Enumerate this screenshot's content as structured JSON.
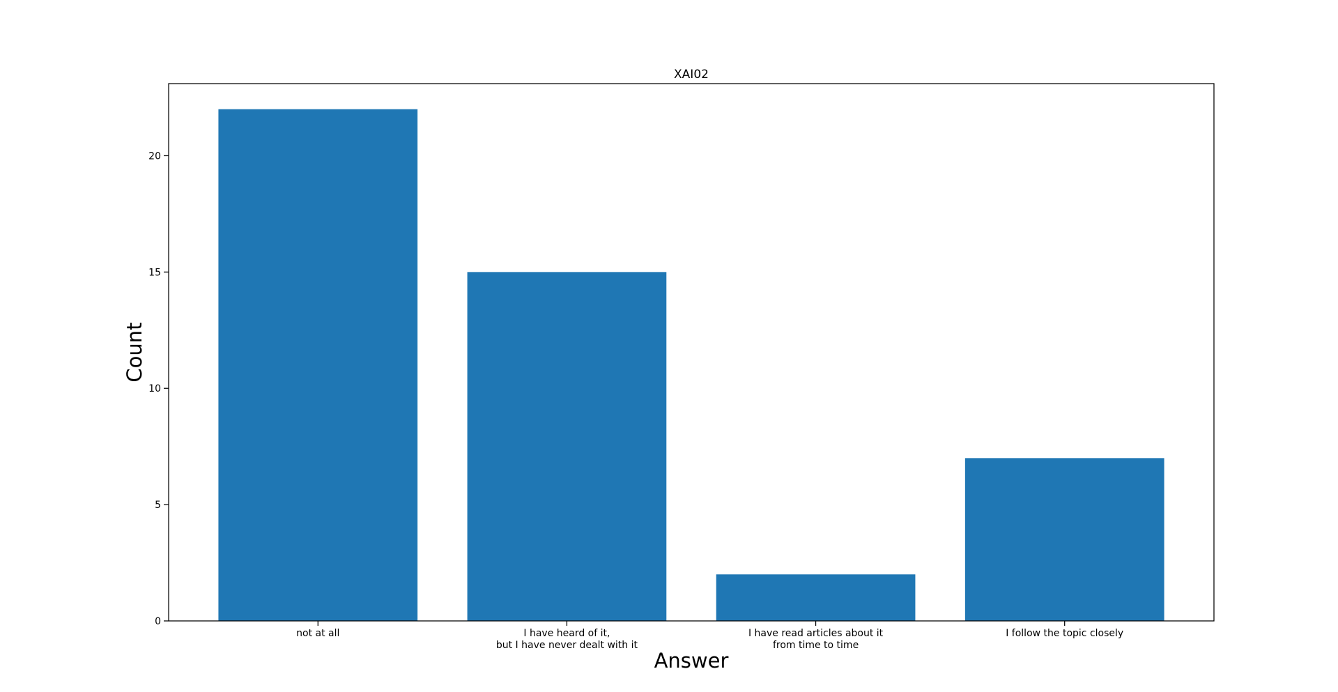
{
  "chart_data": {
    "type": "bar",
    "title": "XAI02",
    "xlabel": "Answer",
    "ylabel": "Count",
    "categories": [
      "not at all",
      "I have heard of it,\nbut I have never dealt with it",
      "I have read articles about it\nfrom time to time",
      "I follow the topic closely"
    ],
    "values": [
      22,
      15,
      2,
      7
    ],
    "ylim": [
      0,
      23.1
    ],
    "yticks": [
      0,
      5,
      10,
      15,
      20
    ],
    "bar_color": "#1f77b4",
    "grid": false,
    "legend": "none"
  }
}
